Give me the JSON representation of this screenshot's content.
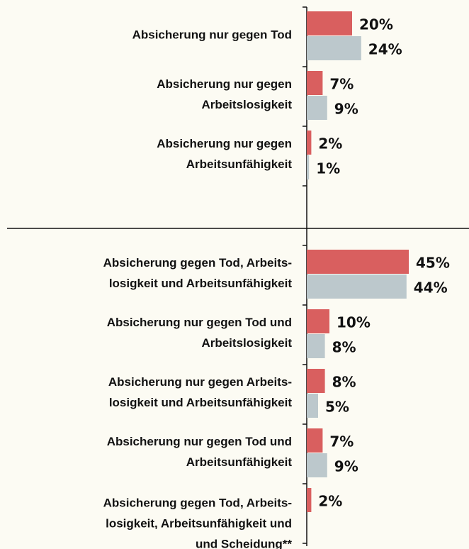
{
  "chart_data": {
    "type": "bar",
    "orientation": "horizontal",
    "categories": [
      [
        "Absicherung nur gegen Tod"
      ],
      [
        "Absicherung nur gegen",
        "Arbeitslosigkeit"
      ],
      [
        "Absicherung nur gegen",
        "Arbeitsunfähigkeit"
      ],
      null,
      [
        "Absicherung gegen Tod, Arbeits-",
        "losigkeit und Arbeitsunfähigkeit"
      ],
      [
        "Absicherung nur gegen Tod und",
        "Arbeitslosigkeit"
      ],
      [
        "Absicherung nur gegen Arbeits-",
        "losigkeit und Arbeitsunfähigkeit"
      ],
      [
        "Absicherung nur gegen Tod und",
        "Arbeitsunfähigkeit"
      ],
      [
        "Absicherung gegen Tod, Arbeits-",
        "losigkeit, Arbeitsunfähigkeit und",
        "und Scheidung**"
      ]
    ],
    "series": [
      {
        "color": "#d95f5f",
        "values": [
          20,
          7,
          2,
          null,
          45,
          10,
          8,
          7,
          2
        ],
        "value_labels": [
          "20%",
          "7%",
          "2%",
          null,
          "45%",
          "10%",
          "8%",
          "7%",
          "2%"
        ]
      },
      {
        "color": "#bcc8cc",
        "values": [
          24,
          9,
          1,
          null,
          44,
          8,
          5,
          9,
          null
        ],
        "value_labels": [
          "24%",
          "9%",
          "1%",
          null,
          "44%",
          "8%",
          "5%",
          "9%",
          null
        ]
      }
    ],
    "xlim": [
      0,
      70
    ]
  }
}
